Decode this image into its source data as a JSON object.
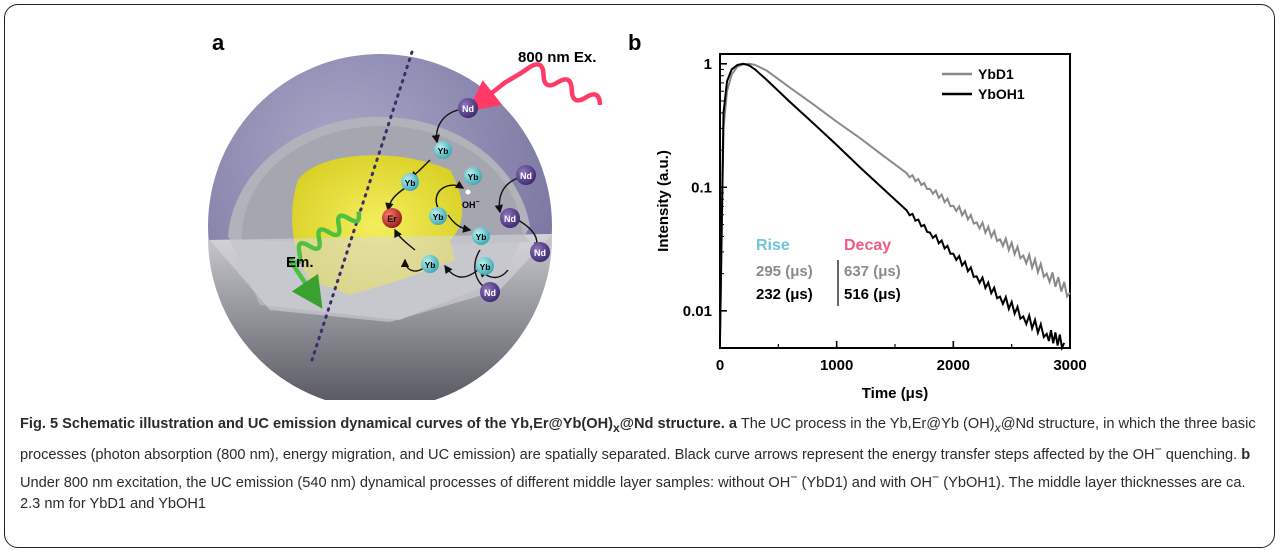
{
  "panel_a": {
    "letter": "a",
    "excitation_label": "800 nm Ex.",
    "emission_label": "Em.",
    "hydroxyl_label": "OH",
    "hydroxyl_superscript": "−",
    "ions": {
      "nd": "Nd",
      "yb": "Yb",
      "er": "Er"
    },
    "colors": {
      "shell_outer": "#8a86b0",
      "shell_middle": "#a8a8b0",
      "core": "#e8e040",
      "nd_ion": "#5a3f8a",
      "yb_ion": "#5ec8d0",
      "er_ion": "#c0282a",
      "excitation_wave": "#ff3a66",
      "emission_wave": "#50c040"
    }
  },
  "panel_b": {
    "letter": "b",
    "annotation": {
      "rise_header": "Rise",
      "decay_header": "Decay",
      "rows": [
        {
          "rise": "295 (μs)",
          "decay": "637 (μs)",
          "color": "#8a8a8a"
        },
        {
          "rise": "232 (μs)",
          "decay": "516 (μs)",
          "color": "#000000"
        }
      ],
      "rise_color": "#6ec6d8",
      "decay_color": "#ef5b84"
    }
  },
  "chart_data": {
    "type": "line",
    "title": "",
    "xlabel": "Time (μs)",
    "ylabel": "Intensity (a.u.)",
    "xlim": [
      0,
      3000
    ],
    "ylim": [
      0.005,
      1.2
    ],
    "yscale": "log",
    "x_ticks": [
      0,
      1000,
      2000,
      3000
    ],
    "x_tick_labels": [
      "0",
      "1000",
      "2000",
      "3000"
    ],
    "y_ticks": [
      0.01,
      0.1,
      1
    ],
    "y_tick_labels": [
      "0.01",
      "0.1",
      "1"
    ],
    "grid": false,
    "legend_position": "top-right",
    "series": [
      {
        "name": "YbD1",
        "color": "#8a8a8a",
        "x": [
          0,
          30,
          60,
          100,
          150,
          200,
          250,
          300,
          400,
          600,
          800,
          1000,
          1200,
          1400,
          1600,
          1800,
          2000,
          2200,
          2400,
          2600,
          2800,
          3000
        ],
        "y": [
          0.006,
          0.3,
          0.6,
          0.82,
          0.95,
          0.99,
          1.0,
          0.98,
          0.88,
          0.64,
          0.47,
          0.34,
          0.25,
          0.18,
          0.13,
          0.097,
          0.071,
          0.052,
          0.038,
          0.028,
          0.02,
          0.014
        ]
      },
      {
        "name": "YbOH1",
        "color": "#000000",
        "x": [
          0,
          30,
          60,
          100,
          150,
          200,
          250,
          300,
          400,
          600,
          800,
          1000,
          1200,
          1400,
          1600,
          1800,
          2000,
          2200,
          2400,
          2600,
          2800,
          2950
        ],
        "y": [
          0.006,
          0.4,
          0.72,
          0.9,
          0.98,
          1.0,
          0.97,
          0.9,
          0.74,
          0.49,
          0.33,
          0.22,
          0.145,
          0.097,
          0.065,
          0.043,
          0.029,
          0.019,
          0.013,
          0.009,
          0.0065,
          0.0055
        ]
      }
    ]
  },
  "caption": {
    "title": "Fig. 5 Schematic illustration and UC emission dynamical curves of the Yb,Er@Yb(OH)",
    "title_sub": "x",
    "title_end": "@Nd structure.",
    "a_letter": "a",
    "a_text_1": "The UC process in the Yb,Er@Yb (OH)",
    "a_sub": "x",
    "a_text_2": "@Nd structure, in which the three basic processes (photon absorption (800 nm), energy migration, and UC emission) are spatially separated. Black curve arrows represent the energy transfer steps affected by the OH",
    "a_sup": "−",
    "a_text_3": "quenching.",
    "b_letter": "b",
    "b_text_1": "Under 800 nm excitation, the UC emission (540 nm) dynamical processes of different middle layer samples: without OH",
    "b_sup_1": "−",
    "b_text_2": "(YbD1) and with OH",
    "b_sup_2": "−",
    "b_text_3": "(YbOH1). The middle layer thicknesses are ca. 2.3 nm for YbD1 and YbOH1"
  }
}
